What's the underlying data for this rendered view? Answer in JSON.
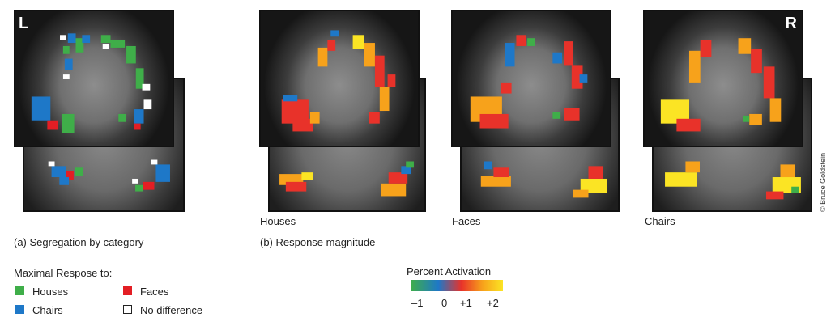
{
  "panels": {
    "a": {
      "corner_letter": "L",
      "caption": "(a) Segregation by category"
    },
    "b": {
      "caption": "(b) Response magnitude",
      "houses_label": "Houses",
      "faces_label": "Faces",
      "chairs_label": "Chairs",
      "corner_letter": "R"
    }
  },
  "credit": "© Bruce Goldstein",
  "legend": {
    "title": "Maximal Respose to:",
    "items": [
      {
        "label": "Houses",
        "color": "#3fae49"
      },
      {
        "label": "Faces",
        "color": "#e31e24"
      },
      {
        "label": "Chairs",
        "color": "#1e78c8"
      },
      {
        "label": "No difference",
        "color": "#ffffff"
      }
    ]
  },
  "scale": {
    "title": "Percent Activation",
    "ticks": [
      "–1",
      "0",
      "+1",
      "+2"
    ]
  }
}
